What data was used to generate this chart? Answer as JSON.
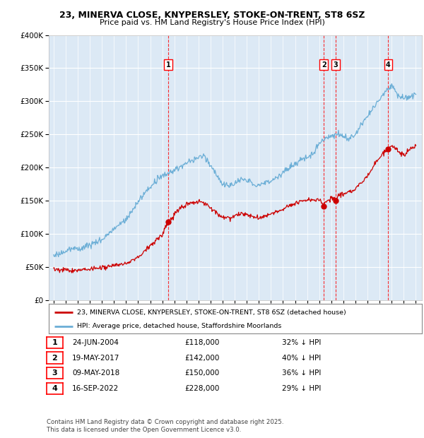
{
  "title_line1": "23, MINERVA CLOSE, KNYPERSLEY, STOKE-ON-TRENT, ST8 6SZ",
  "title_line2": "Price paid vs. HM Land Registry's House Price Index (HPI)",
  "hpi_color": "#6baed6",
  "price_color": "#cc0000",
  "transactions": [
    {
      "num": 1,
      "date_num": 2004.48,
      "price": 118000,
      "label": "1"
    },
    {
      "num": 2,
      "date_num": 2017.38,
      "price": 142000,
      "label": "2"
    },
    {
      "num": 3,
      "date_num": 2018.36,
      "price": 150000,
      "label": "3"
    },
    {
      "num": 4,
      "date_num": 2022.71,
      "price": 228000,
      "label": "4"
    }
  ],
  "table_rows": [
    [
      "1",
      "24-JUN-2004",
      "£118,000",
      "32% ↓ HPI"
    ],
    [
      "2",
      "19-MAY-2017",
      "£142,000",
      "40% ↓ HPI"
    ],
    [
      "3",
      "09-MAY-2018",
      "£150,000",
      "36% ↓ HPI"
    ],
    [
      "4",
      "16-SEP-2022",
      "£228,000",
      "29% ↓ HPI"
    ]
  ],
  "footer": "Contains HM Land Registry data © Crown copyright and database right 2025.\nThis data is licensed under the Open Government Licence v3.0.",
  "legend_line1": "23, MINERVA CLOSE, KNYPERSLEY, STOKE-ON-TRENT, ST8 6SZ (detached house)",
  "legend_line2": "HPI: Average price, detached house, Staffordshire Moorlands",
  "ylim_max": 400000,
  "ylim_min": 0,
  "xmin": 1994.6,
  "xmax": 2025.5,
  "plot_bg_color": "#dce9f5"
}
